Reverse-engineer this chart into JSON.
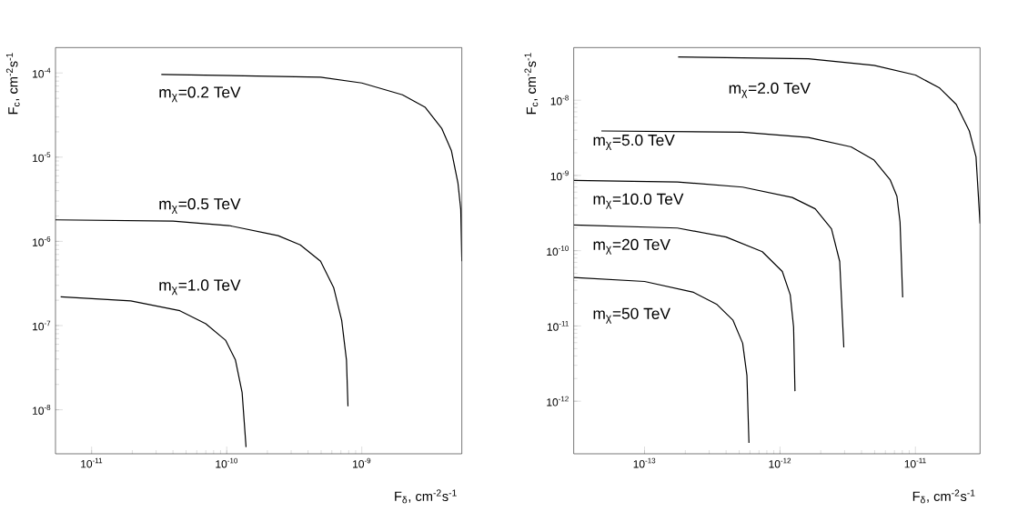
{
  "chart_data": [
    {
      "type": "line",
      "xlabel": "F$_{δ}$, cm$^{-2}$s$^{-1}$",
      "ylabel": "F$_{c}$, cm$^{-2}$s$^{-1}$",
      "log": "xy",
      "xlim": [
        5.4e-12,
        5.5e-09
      ],
      "ylim": [
        3e-09,
        0.0002
      ],
      "xticks": [
        {
          "value": 1e-11,
          "label": "10$^{-11}$"
        },
        {
          "value": 1e-10,
          "label": "10$^{-10}$"
        },
        {
          "value": 1e-09,
          "label": "10$^{-9}$"
        }
      ],
      "yticks": [
        {
          "value": 1e-08,
          "label": "10$^{-8}$"
        },
        {
          "value": 1e-07,
          "label": "10$^{-7}$"
        },
        {
          "value": 1e-06,
          "label": "10$^{-6}$"
        },
        {
          "value": 1e-05,
          "label": "10$^{-5}$"
        },
        {
          "value": 0.0001,
          "label": "10$^{-4}$"
        }
      ],
      "series": [
        {
          "name": "m$_{χ}$=0.2 TeV",
          "color": "#000000",
          "x": [
            3.28e-11,
            4.95e-10,
            1e-09,
            2e-09,
            2.95e-09,
            3.9e-09,
            4.6e-09,
            5.15e-09,
            5.4e-09,
            5.5e-09
          ],
          "values": [
            9.6e-05,
            8.9e-05,
            7.6e-05,
            5.5e-05,
            3.9e-05,
            2.2e-05,
            1.2e-05,
            4.9e-06,
            2.4e-06,
            5.8e-07
          ]
        },
        {
          "name": "m$_{χ}$=0.5 TeV",
          "color": "#000000",
          "x": [
            5.4e-12,
            4e-11,
            1.04e-10,
            2.4e-10,
            3.5e-10,
            4.95e-10,
            6.2e-10,
            7.1e-10,
            7.7e-10,
            7.9e-10
          ],
          "values": [
            1.8e-06,
            1.74e-06,
            1.54e-06,
            1.17e-06,
            9.1e-07,
            5.8e-07,
            2.8e-07,
            1.15e-07,
            3.9e-08,
            1.1e-08
          ]
        },
        {
          "name": "m$_{χ}$=1.0 TeV",
          "color": "#000000",
          "x": [
            5.9e-12,
            1.95e-11,
            4.5e-11,
            7e-11,
            9.8e-11,
            1.16e-10,
            1.3e-10,
            1.39e-10
          ],
          "values": [
            2.2e-07,
            1.96e-07,
            1.5e-07,
            1.05e-07,
            6.7e-08,
            3.9e-08,
            1.6e-08,
            3.6e-09
          ]
        }
      ]
    },
    {
      "type": "line",
      "xlabel": "F$_{δ}$, cm$^{-2}$s$^{-1}$",
      "ylabel": "F$_{c}$, cm$^{-2}$s$^{-1}$",
      "log": "xy",
      "xlim": [
        3e-14,
        3e-11
      ],
      "ylim": [
        2e-13,
        5e-08
      ],
      "xticks": [
        {
          "value": 1e-13,
          "label": "10$^{-13}$"
        },
        {
          "value": 1e-12,
          "label": "10$^{-12}$"
        },
        {
          "value": 1e-11,
          "label": "10$^{-11}$"
        }
      ],
      "yticks": [
        {
          "value": 1e-12,
          "label": "10$^{-12}$"
        },
        {
          "value": 1e-11,
          "label": "10$^{-11}$"
        },
        {
          "value": 1e-10,
          "label": "10$^{-10}$"
        },
        {
          "value": 1e-09,
          "label": "10$^{-9}$"
        },
        {
          "value": 1e-08,
          "label": "10$^{-8}$"
        }
      ],
      "series": [
        {
          "name": "m$_{χ}$=2.0 TeV",
          "color": "#000000",
          "x": [
            1.77e-13,
            1.62e-12,
            4.95e-12,
            1e-11,
            1.51e-11,
            2e-11,
            2.5e-11,
            2.8e-11,
            3e-11
          ],
          "values": [
            3.75e-08,
            3.56e-08,
            2.9e-08,
            2.16e-08,
            1.45e-08,
            8.8e-09,
            3.9e-09,
            1.77e-09,
            2.3e-10
          ]
        },
        {
          "name": "m$_{χ}$=5.0 TeV",
          "color": "#000000",
          "x": [
            4.8e-14,
            5.3e-13,
            1.62e-12,
            3.35e-12,
            4.95e-12,
            6.5e-12,
            7.3e-12,
            7.7e-12,
            8.05e-12
          ],
          "values": [
            3.9e-09,
            3.75e-09,
            3.2e-09,
            2.4e-09,
            1.6e-09,
            8.8e-10,
            5.3e-10,
            2.4e-10,
            2.4e-11
          ]
        },
        {
          "name": "m$_{χ}$=10.0 TeV",
          "color": "#000000",
          "x": [
            3e-14,
            1.75e-13,
            5.3e-13,
            1.23e-12,
            1.82e-12,
            2.4e-12,
            2.76e-12,
            2.96e-12
          ],
          "values": [
            8.6e-10,
            8.2e-10,
            7e-10,
            5.1e-10,
            3.6e-10,
            1.95e-10,
            7.2e-11,
            5.2e-12
          ]
        },
        {
          "name": "m$_{χ}$=20 TeV",
          "color": "#000000",
          "x": [
            3e-14,
            1.75e-13,
            4e-13,
            7.4e-13,
            1.04e-12,
            1.19e-12,
            1.26e-12,
            1.29e-12
          ],
          "values": [
            2.2e-10,
            2e-10,
            1.52e-10,
            9.7e-11,
            5.3e-11,
            2.6e-11,
            9.7e-12,
            1.36e-12
          ]
        },
        {
          "name": "m$_{χ}$=50 TeV",
          "color": "#000000",
          "x": [
            3e-14,
            1e-13,
            2.3e-13,
            3.4e-13,
            4.5e-13,
            5.3e-13,
            5.7e-13,
            5.9e-13
          ],
          "values": [
            4.4e-11,
            3.9e-11,
            2.8e-11,
            1.95e-11,
            1.19e-11,
            5.9e-12,
            2.2e-12,
            2.8e-13
          ]
        }
      ]
    }
  ]
}
